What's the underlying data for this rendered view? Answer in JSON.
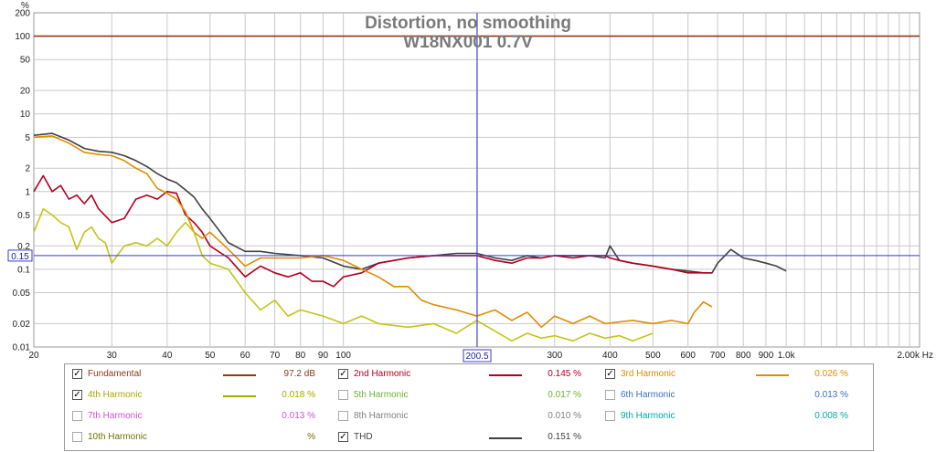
{
  "chart_data": {
    "type": "line",
    "title": "Distortion, no smoothing",
    "subtitle": "W18NX001  0.7V",
    "y_unit_label": "%",
    "x_unit_label": "Hz",
    "y_scale": "log",
    "x_scale": "log",
    "xlim": [
      20,
      2000
    ],
    "ylim": [
      0.01,
      200
    ],
    "grid": true,
    "x_ticks": [
      {
        "v": 20,
        "label": "20"
      },
      {
        "v": 30,
        "label": "30"
      },
      {
        "v": 40,
        "label": "40"
      },
      {
        "v": 50,
        "label": "50"
      },
      {
        "v": 60,
        "label": "60"
      },
      {
        "v": 70,
        "label": "70"
      },
      {
        "v": 80,
        "label": "80"
      },
      {
        "v": 90,
        "label": "90"
      },
      {
        "v": 100,
        "label": "100"
      },
      {
        "v": 300,
        "label": "300"
      },
      {
        "v": 400,
        "label": "400"
      },
      {
        "v": 500,
        "label": "500"
      },
      {
        "v": 600,
        "label": "600"
      },
      {
        "v": 700,
        "label": "700"
      },
      {
        "v": 800,
        "label": "800"
      },
      {
        "v": 900,
        "label": "900"
      },
      {
        "v": 1000,
        "label": "1.0k"
      },
      {
        "v": 2000,
        "label": "2.00k Hz"
      }
    ],
    "y_ticks": [
      {
        "v": 200,
        "label": "200"
      },
      {
        "v": 100,
        "label": "100"
      },
      {
        "v": 50,
        "label": "50"
      },
      {
        "v": 20,
        "label": "20"
      },
      {
        "v": 10,
        "label": "10"
      },
      {
        "v": 5,
        "label": "5"
      },
      {
        "v": 2,
        "label": "2"
      },
      {
        "v": 1,
        "label": "1"
      },
      {
        "v": 0.5,
        "label": "0.5"
      },
      {
        "v": 0.2,
        "label": "0.2"
      },
      {
        "v": 0.1,
        "label": "0.1"
      },
      {
        "v": 0.05,
        "label": "0.05"
      },
      {
        "v": 0.02,
        "label": "0.02"
      },
      {
        "v": 0.01,
        "label": "0.01"
      }
    ],
    "cursor": {
      "x": 200.5,
      "x_label": "200.5",
      "y": 0.15,
      "y_label": "0.15",
      "color": "#3a3acf"
    },
    "series": [
      {
        "name": "Fundamental",
        "color": "#8b3a1a",
        "width": 1.6,
        "x": [
          20,
          2000
        ],
        "y": [
          100,
          100
        ]
      },
      {
        "name": "THD",
        "color": "#404040",
        "width": 1.6,
        "x": [
          20,
          22,
          24,
          26,
          28,
          30,
          32,
          34,
          36,
          38,
          40,
          42,
          44,
          46,
          48,
          50,
          55,
          60,
          65,
          70,
          80,
          90,
          100,
          110,
          120,
          140,
          160,
          180,
          200,
          220,
          240,
          260,
          280,
          300,
          330,
          360,
          390,
          400,
          420,
          450,
          500,
          550,
          600,
          650,
          680,
          700,
          750,
          800,
          850,
          900,
          950,
          1000
        ],
        "y": [
          5.3,
          5.6,
          4.6,
          3.6,
          3.3,
          3.2,
          2.9,
          2.5,
          2.1,
          1.7,
          1.45,
          1.3,
          1.05,
          0.85,
          0.6,
          0.45,
          0.22,
          0.17,
          0.17,
          0.16,
          0.15,
          0.14,
          0.11,
          0.1,
          0.12,
          0.14,
          0.15,
          0.16,
          0.16,
          0.14,
          0.13,
          0.15,
          0.14,
          0.15,
          0.15,
          0.15,
          0.14,
          0.2,
          0.13,
          0.12,
          0.11,
          0.1,
          0.095,
          0.09,
          0.09,
          0.12,
          0.18,
          0.14,
          0.13,
          0.12,
          0.11,
          0.095
        ]
      },
      {
        "name": "2nd Harmonic",
        "color": "#b00020",
        "width": 1.6,
        "x": [
          20,
          21,
          22,
          23,
          24,
          25,
          26,
          27,
          28,
          30,
          32,
          34,
          36,
          38,
          40,
          42,
          44,
          46,
          48,
          50,
          55,
          60,
          65,
          70,
          75,
          80,
          85,
          90,
          95,
          100,
          110,
          120,
          140,
          160,
          180,
          200,
          220,
          240,
          260,
          280,
          300,
          330,
          360,
          390,
          400,
          420,
          450,
          500,
          550,
          600,
          650,
          680
        ],
        "y": [
          1.0,
          1.6,
          1.0,
          1.2,
          0.8,
          0.9,
          0.7,
          0.9,
          0.6,
          0.4,
          0.45,
          0.8,
          0.9,
          0.8,
          1.0,
          0.95,
          0.5,
          0.4,
          0.3,
          0.2,
          0.14,
          0.08,
          0.11,
          0.09,
          0.08,
          0.09,
          0.07,
          0.07,
          0.06,
          0.08,
          0.09,
          0.12,
          0.14,
          0.15,
          0.15,
          0.15,
          0.13,
          0.12,
          0.14,
          0.14,
          0.15,
          0.14,
          0.15,
          0.15,
          0.14,
          0.13,
          0.12,
          0.11,
          0.1,
          0.09,
          0.09,
          0.09
        ]
      },
      {
        "name": "3rd Harmonic",
        "color": "#e08c00",
        "width": 1.6,
        "x": [
          20,
          22,
          24,
          26,
          28,
          30,
          32,
          34,
          36,
          38,
          40,
          42,
          44,
          46,
          48,
          50,
          55,
          60,
          65,
          70,
          80,
          90,
          100,
          110,
          120,
          130,
          140,
          150,
          160,
          180,
          200,
          220,
          240,
          260,
          280,
          300,
          330,
          360,
          390,
          420,
          450,
          500,
          550,
          600,
          620,
          650,
          680
        ],
        "y": [
          5.0,
          5.2,
          4.2,
          3.2,
          3.0,
          2.9,
          2.5,
          2.0,
          1.7,
          1.1,
          0.95,
          0.8,
          0.55,
          0.3,
          0.25,
          0.3,
          0.18,
          0.11,
          0.14,
          0.14,
          0.14,
          0.15,
          0.13,
          0.1,
          0.08,
          0.06,
          0.06,
          0.04,
          0.035,
          0.03,
          0.025,
          0.03,
          0.022,
          0.028,
          0.018,
          0.025,
          0.02,
          0.025,
          0.02,
          0.021,
          0.022,
          0.02,
          0.022,
          0.02,
          0.028,
          0.038,
          0.033
        ]
      },
      {
        "name": "4th Harmonic",
        "color": "#c4c418",
        "width": 1.6,
        "x": [
          20,
          21,
          22,
          23,
          24,
          25,
          26,
          27,
          28,
          29,
          30,
          32,
          34,
          36,
          38,
          40,
          42,
          44,
          46,
          48,
          50,
          55,
          60,
          65,
          70,
          75,
          80,
          90,
          100,
          110,
          120,
          140,
          160,
          180,
          200,
          220,
          240,
          260,
          280,
          300,
          330,
          360,
          390,
          420,
          450,
          500
        ],
        "y": [
          0.3,
          0.6,
          0.5,
          0.4,
          0.35,
          0.18,
          0.3,
          0.35,
          0.25,
          0.22,
          0.12,
          0.2,
          0.22,
          0.2,
          0.25,
          0.2,
          0.3,
          0.4,
          0.3,
          0.15,
          0.12,
          0.1,
          0.05,
          0.03,
          0.04,
          0.025,
          0.03,
          0.025,
          0.02,
          0.025,
          0.02,
          0.018,
          0.02,
          0.015,
          0.022,
          0.016,
          0.012,
          0.015,
          0.013,
          0.014,
          0.012,
          0.015,
          0.013,
          0.014,
          0.012,
          0.015
        ]
      }
    ]
  },
  "legend": {
    "rows": [
      [
        {
          "label": "Fundamental",
          "value": "97.2 dB",
          "checked": true,
          "color": "#8b3a1a"
        },
        {
          "label": "2nd Harmonic",
          "value": "0.145 %",
          "checked": true,
          "color": "#b00020"
        },
        {
          "label": "3rd Harmonic",
          "value": "0.026 %",
          "checked": true,
          "color": "#e08c00"
        }
      ],
      [
        {
          "label": "4th Harmonic",
          "value": "0.018 %",
          "checked": true,
          "color": "#a8a800"
        },
        {
          "label": "5th Harmonic",
          "value": "0.017 %",
          "checked": false,
          "color": "#70b030"
        },
        {
          "label": "6th Harmonic",
          "value": "0.013 %",
          "checked": false,
          "color": "#3a6fc4"
        }
      ],
      [
        {
          "label": "7th Harmonic",
          "value": "0.013 %",
          "checked": false,
          "color": "#d050d0"
        },
        {
          "label": "8th Harmonic",
          "value": "0.010 %",
          "checked": false,
          "color": "#808080"
        },
        {
          "label": "9th Harmonic",
          "value": "0.008 %",
          "checked": false,
          "color": "#00a8a8"
        }
      ],
      [
        {
          "label": "10th Harmonic",
          "value": "%",
          "checked": false,
          "color": "#707000"
        },
        {
          "label": "THD",
          "value": "0.151 %",
          "checked": true,
          "color": "#404040"
        }
      ]
    ]
  }
}
